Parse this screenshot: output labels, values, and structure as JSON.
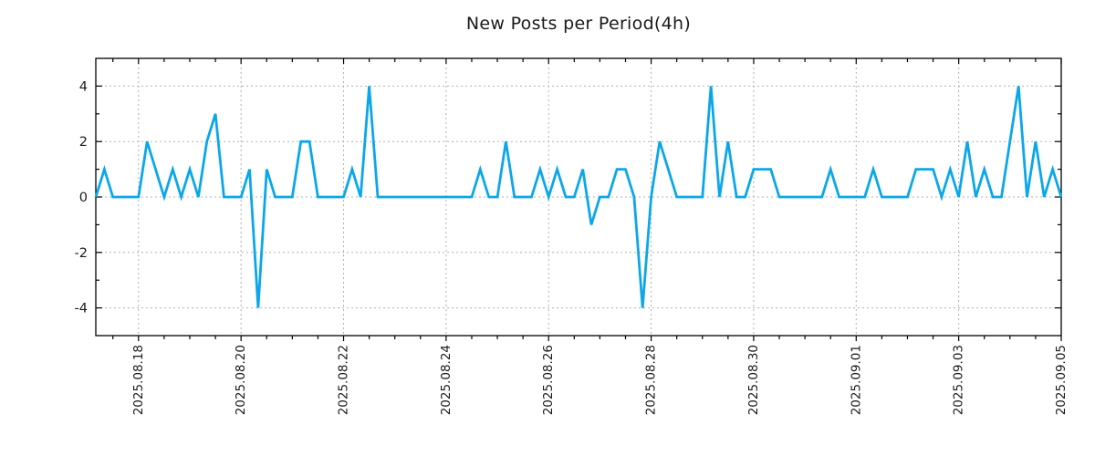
{
  "chart_data": {
    "type": "line",
    "title": "New Posts per Period(4h)",
    "period": "4h",
    "series": [
      {
        "name": "new posts",
        "color": "#0ba7e9",
        "values": [
          0,
          1,
          0,
          0,
          0,
          0,
          2,
          1,
          0,
          1,
          0,
          1,
          0,
          2,
          3,
          0,
          0,
          0,
          1,
          -4,
          1,
          0,
          0,
          0,
          2,
          2,
          0,
          0,
          0,
          0,
          1,
          0,
          4,
          0,
          0,
          0,
          0,
          0,
          0,
          0,
          0,
          0,
          0,
          0,
          0,
          1,
          0,
          0,
          2,
          0,
          0,
          0,
          1,
          0,
          1,
          0,
          0,
          1,
          -1,
          0,
          0,
          1,
          1,
          0,
          -4,
          0,
          2,
          1,
          0,
          0,
          0,
          0,
          4,
          0,
          2,
          0,
          0,
          1,
          1,
          1,
          0,
          0,
          0,
          0,
          0,
          0,
          1,
          0,
          0,
          0,
          0,
          1,
          0,
          0,
          0,
          0,
          1,
          1,
          1,
          0,
          1,
          0,
          2,
          0,
          1,
          0,
          0,
          2,
          4,
          0,
          2,
          0,
          1,
          0
        ]
      }
    ],
    "x_tick_labels": [
      "2025.08.18",
      "2025.08.20",
      "2025.08.22",
      "2025.08.24",
      "2025.08.26",
      "2025.08.28",
      "2025.08.30",
      "2025.09.01",
      "2025.09.03",
      "2025.09.05"
    ],
    "x_tick_indices": [
      5,
      17,
      29,
      41,
      53,
      65,
      77,
      89,
      101,
      113
    ],
    "x_minor_tick_start": 2,
    "x_minor_tick_step": 3,
    "y_tick_values": [
      -4,
      -2,
      0,
      2,
      4
    ],
    "y_minor_tick_values": [
      -3,
      -1,
      1,
      3
    ],
    "ylim": [
      -5,
      5
    ],
    "grid": "dotted",
    "legend": "none",
    "colors": {
      "line": "#0ba7e9",
      "axis": "#000000",
      "grid": "#b0b0b0",
      "text": "#1a1a1a"
    }
  }
}
